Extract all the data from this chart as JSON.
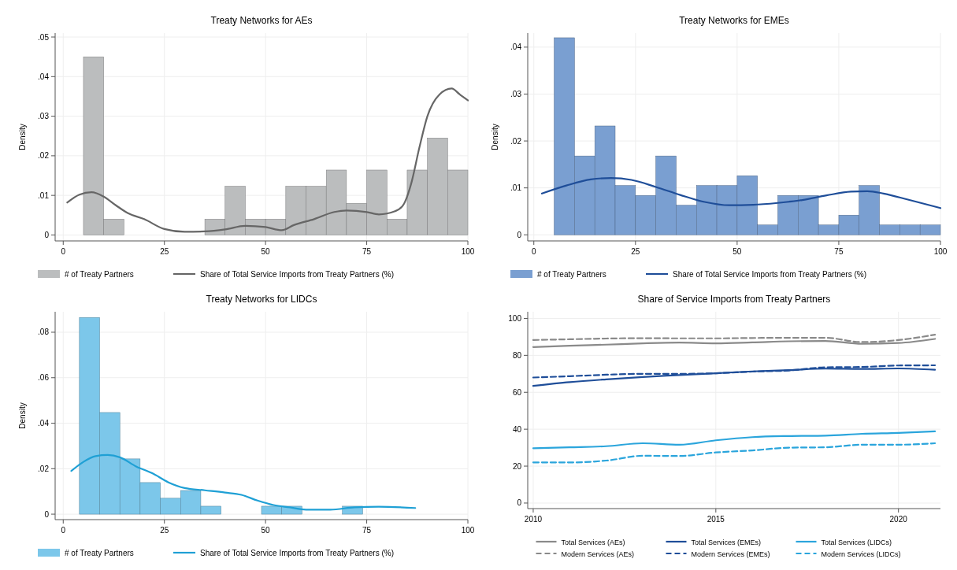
{
  "chart_data": [
    {
      "type": "histogram",
      "title": "Treaty Networks for AEs",
      "ylabel": "Density",
      "bins": [
        5,
        10,
        15,
        20,
        25,
        30,
        35,
        40,
        45,
        50,
        55,
        60,
        65,
        70,
        75,
        80,
        85,
        90,
        95,
        100
      ],
      "xlim": [
        -2,
        100
      ],
      "xticks": [
        0,
        25,
        50,
        75,
        100
      ],
      "ylim": [
        -0.0015,
        0.051
      ],
      "yticks": [
        0,
        {
          "value": 0.01,
          "label": ".01"
        },
        {
          "value": 0.02,
          "label": ".02"
        },
        {
          "value": 0.03,
          "label": ".03"
        },
        {
          "value": 0.04,
          "label": ".04"
        },
        {
          "value": 0.05,
          "label": ".05"
        }
      ],
      "grid": true,
      "legend": "bottom",
      "series": [
        {
          "name": "# of Treaty Partners",
          "type": "histogram",
          "color": "#bbbdbe",
          "values": [
            0.045,
            0.004,
            0,
            0,
            0,
            0,
            0.004,
            0.0123,
            0.004,
            0.004,
            0.0123,
            0.0123,
            0.0164,
            0.008,
            0.0164,
            0.004,
            0.0164,
            0.0245,
            0.0164
          ]
        },
        {
          "name": "Share of Total Service Imports from Treaty Partners (%)",
          "type": "line",
          "color": "#666666",
          "x": [
            1,
            4,
            7,
            10,
            13,
            16,
            20,
            25,
            30,
            35,
            40,
            45,
            50,
            54,
            57,
            62,
            67,
            70,
            75,
            78,
            82,
            84,
            86,
            88,
            90,
            93,
            96,
            98,
            100
          ],
          "values": [
            0.0082,
            0.0102,
            0.0108,
            0.0097,
            0.0075,
            0.0055,
            0.004,
            0.0015,
            0.0008,
            0.0009,
            0.0014,
            0.0023,
            0.002,
            0.0012,
            0.0025,
            0.004,
            0.0058,
            0.0062,
            0.0058,
            0.0052,
            0.006,
            0.0075,
            0.013,
            0.022,
            0.03,
            0.0355,
            0.037,
            0.0355,
            0.034
          ]
        }
      ]
    },
    {
      "type": "histogram",
      "title": "Treaty Networks for EMEs",
      "ylabel": "Density",
      "bins": [
        5,
        10,
        15,
        20,
        25,
        30,
        35,
        40,
        45,
        50,
        55,
        60,
        65,
        70,
        75,
        80,
        85,
        90,
        95,
        100
      ],
      "xlim": [
        -1.5,
        100
      ],
      "xticks": [
        0,
        25,
        50,
        75,
        100
      ],
      "ylim": [
        -0.0013,
        0.043
      ],
      "yticks": [
        0,
        {
          "value": 0.01,
          "label": ".01"
        },
        {
          "value": 0.02,
          "label": ".02"
        },
        {
          "value": 0.03,
          "label": ".03"
        },
        {
          "value": 0.04,
          "label": ".04"
        }
      ],
      "grid": true,
      "legend": "bottom",
      "series": [
        {
          "name": "# of Treaty Partners",
          "type": "histogram",
          "color": "#7a9fd1",
          "values": [
            0.042,
            0.0168,
            0.0232,
            0.0105,
            0.0084,
            0.0168,
            0.0063,
            0.0105,
            0.0105,
            0.0126,
            0.0021,
            0.0084,
            0.0084,
            0.0021,
            0.0042,
            0.0105,
            0.0021,
            0.0021,
            0.0021
          ]
        },
        {
          "name": "Share of Total Service Imports from Treaty Partners (%)",
          "type": "line",
          "color": "#1f4e99",
          "x": [
            2,
            8,
            14,
            19,
            24,
            30,
            36,
            42,
            48,
            54,
            60,
            66,
            72,
            78,
            82,
            86,
            92,
            100
          ],
          "values": [
            0.0088,
            0.0105,
            0.0118,
            0.0121,
            0.0117,
            0.0102,
            0.0085,
            0.007,
            0.0063,
            0.0064,
            0.0068,
            0.0074,
            0.0084,
            0.0092,
            0.0093,
            0.0088,
            0.0075,
            0.0057
          ]
        }
      ]
    },
    {
      "type": "histogram",
      "title": "Treaty Networks for LIDCs",
      "ylabel": "Density",
      "bins": [
        4,
        9,
        14,
        19,
        24,
        29,
        34,
        39,
        44,
        49,
        54,
        59,
        64,
        69,
        74
      ],
      "xlim": [
        -2,
        100
      ],
      "xticks": [
        0,
        25,
        50,
        75,
        100
      ],
      "ylim": [
        -0.0024,
        0.089
      ],
      "yticks": [
        0,
        {
          "value": 0.02,
          "label": ".02"
        },
        {
          "value": 0.04,
          "label": ".04"
        },
        {
          "value": 0.06,
          "label": ".06"
        },
        {
          "value": 0.08,
          "label": ".08"
        }
      ],
      "grid": true,
      "legend": "bottom",
      "series": [
        {
          "name": "# of Treaty Partners",
          "type": "histogram",
          "color": "#7cc7ea",
          "values": [
            0.0865,
            0.0447,
            0.0243,
            0.0139,
            0.007,
            0.0104,
            0.0035,
            0,
            0,
            0.0035,
            0.0035,
            0,
            0,
            0.0035
          ]
        },
        {
          "name": "Share of Total Service Imports from Treaty Partners (%)",
          "type": "line",
          "color": "#1fa0d5",
          "x": [
            2,
            5,
            8,
            11,
            14,
            18,
            22,
            26,
            30,
            35,
            40,
            44,
            48,
            52,
            56,
            60,
            66,
            72,
            78,
            87
          ],
          "values": [
            0.019,
            0.023,
            0.0255,
            0.026,
            0.025,
            0.021,
            0.018,
            0.014,
            0.0115,
            0.0105,
            0.0095,
            0.0085,
            0.006,
            0.004,
            0.003,
            0.002,
            0.002,
            0.003,
            0.0033,
            0.0027
          ]
        }
      ]
    },
    {
      "type": "line",
      "title": "Share of Service Imports from Treaty Partners",
      "x": [
        2010,
        2011,
        2012,
        2013,
        2014,
        2015,
        2016,
        2017,
        2018,
        2019,
        2020,
        2021
      ],
      "xlim": [
        2009.85,
        2021.15
      ],
      "xticks": [
        2010,
        2015,
        2020
      ],
      "ylim": [
        -3,
        103.6
      ],
      "yticks": [
        0,
        20,
        40,
        60,
        80,
        100
      ],
      "grid": true,
      "legend": "bottom",
      "series": [
        {
          "name": "Total Services (AEs)",
          "color": "#8a8a8a",
          "line_style": "solid",
          "values": [
            84.5,
            85.2,
            85.8,
            86.5,
            86.9,
            86.5,
            87,
            87.6,
            87.8,
            86.3,
            86.7,
            88.9
          ]
        },
        {
          "name": "Modern Services (AEs)",
          "color": "#8a8a8a",
          "line_style": "dashed",
          "values": [
            88.3,
            88.7,
            89.1,
            89.3,
            89.2,
            89.2,
            89.4,
            89.5,
            89.5,
            87.2,
            88.3,
            91.2
          ]
        },
        {
          "name": "Total Services (EMEs)",
          "color": "#1f4e99",
          "line_style": "solid",
          "values": [
            63.5,
            65.5,
            67,
            68.3,
            69.3,
            70.3,
            71.3,
            72,
            72.8,
            72.6,
            72.9,
            72.2
          ]
        },
        {
          "name": "Modern Services (EMEs)",
          "color": "#1f4e99",
          "line_style": "dashed",
          "values": [
            68,
            68.7,
            69.5,
            70,
            70,
            70.3,
            71.2,
            71.8,
            73.5,
            73.7,
            74.5,
            74.6
          ]
        },
        {
          "name": "Total Services (LIDCs)",
          "color": "#2ba5dc",
          "line_style": "solid",
          "values": [
            29.7,
            30.2,
            30.8,
            32.4,
            31.6,
            34,
            35.7,
            36.3,
            36.5,
            37.5,
            38,
            38.8
          ]
        },
        {
          "name": "Modern Services (LIDCs)",
          "color": "#2ba5dc",
          "line_style": "dashed",
          "values": [
            22,
            22,
            23,
            25.6,
            25.5,
            27.4,
            28.5,
            30,
            30.2,
            31.6,
            31.6,
            32.4
          ]
        }
      ]
    }
  ]
}
